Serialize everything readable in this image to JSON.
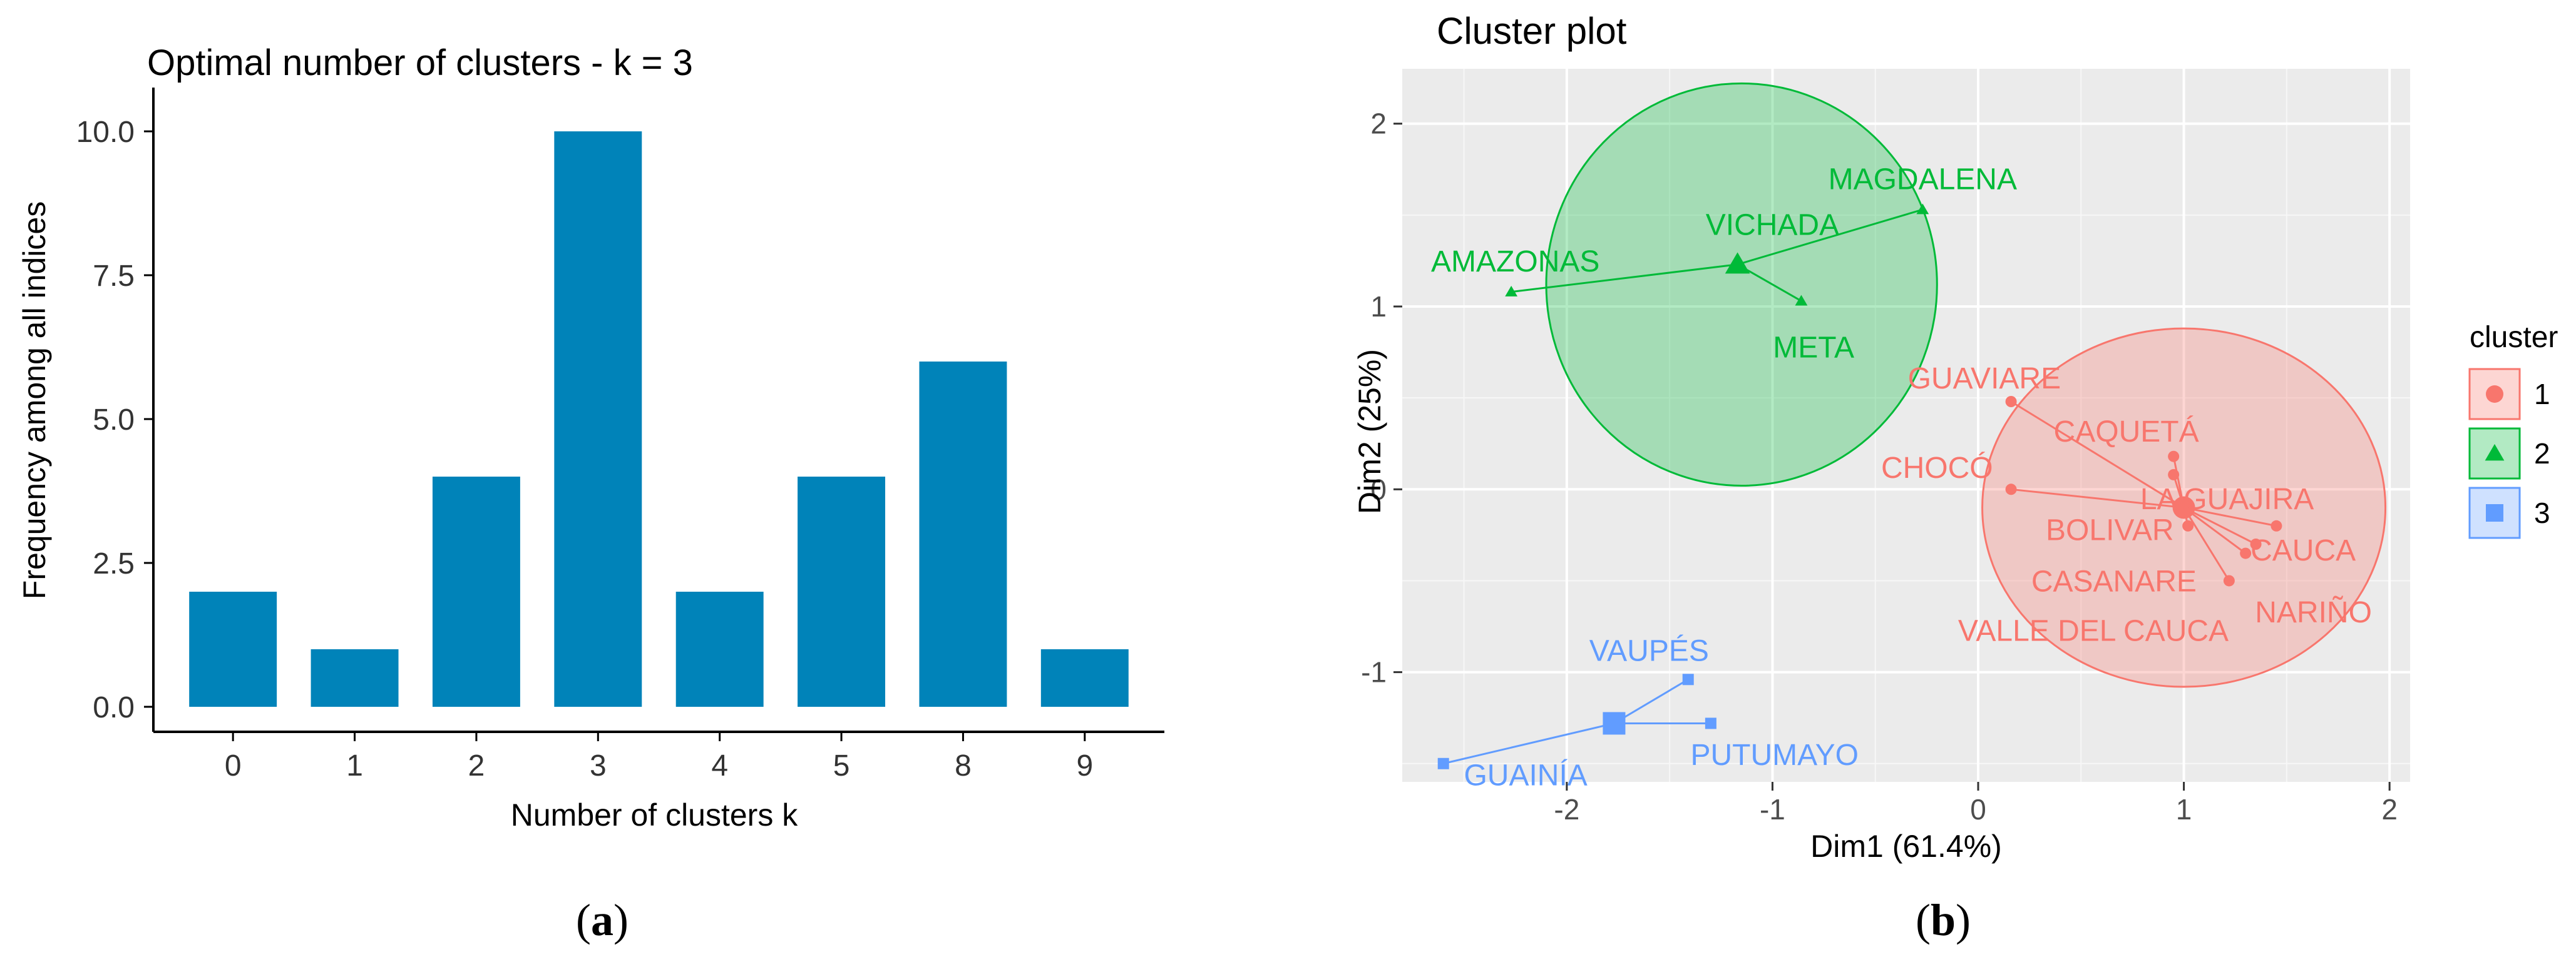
{
  "captions": {
    "a_open": "(",
    "a_letter": "a",
    "a_close": ")",
    "b_open": "(",
    "b_letter": "b",
    "b_close": ")"
  },
  "chart_data": [
    {
      "type": "bar",
      "title": "Optimal number of clusters - k = 3",
      "xlabel": "Number of clusters k",
      "ylabel": "Frequency among all indices",
      "categories": [
        "0",
        "1",
        "2",
        "3",
        "4",
        "5",
        "8",
        "9"
      ],
      "values": [
        2,
        1,
        4,
        10,
        2,
        4,
        6,
        1
      ],
      "ylim": [
        0,
        10
      ],
      "yticks": [
        "0.0",
        "2.5",
        "5.0",
        "7.5",
        "10.0"
      ],
      "ytick_values": [
        0,
        2.5,
        5,
        7.5,
        10
      ],
      "bar_color": "#0083B9",
      "grid": false
    },
    {
      "type": "scatter",
      "title": "Cluster plot",
      "xlabel": "Dim1 (61.4%)",
      "ylabel": "Dim2 (25%)",
      "xlim": [
        -2.8,
        2.1
      ],
      "ylim": [
        -1.6,
        2.3
      ],
      "xticks": [
        -2,
        -1,
        0,
        1,
        2
      ],
      "yticks": [
        -1,
        0,
        1,
        2
      ],
      "grid": true,
      "legend": {
        "title": "cluster",
        "position": "right",
        "entries": [
          "1",
          "2",
          "3"
        ]
      },
      "clusters": [
        {
          "name": "1",
          "color": "#F8766D",
          "fill": "#F8766D",
          "shape": "circle",
          "center": [
            1.0,
            -0.1
          ],
          "ellipse": {
            "cx": 1.0,
            "cy": -0.1,
            "rx": 0.98,
            "ry": 0.98
          },
          "points": [
            {
              "label": "GUAVIARE",
              "x": 0.16,
              "y": 0.48,
              "lx": 0.03,
              "ly": 0.61
            },
            {
              "label": "CAQUETÁ",
              "x": 0.95,
              "y": 0.18,
              "lx": 0.72,
              "ly": 0.32
            },
            {
              "label": "CHOCÓ",
              "x": 0.16,
              "y": 0.0,
              "lx": -0.2,
              "ly": 0.12
            },
            {
              "label": "LA GUAJIRA",
              "x": 0.95,
              "y": 0.08,
              "lx": 1.21,
              "ly": -0.05
            },
            {
              "label": "BOLIVAR",
              "x": 1.02,
              "y": -0.2,
              "lx": 0.64,
              "ly": -0.22
            },
            {
              "label": "CAUCA",
              "x": 1.45,
              "y": -0.2,
              "lx": 1.58,
              "ly": -0.33
            },
            {
              "label": "CASANARE",
              "x": 1.22,
              "y": -0.5,
              "lx": 0.66,
              "ly": -0.5
            },
            {
              "label": "NARIÑO",
              "x": 1.35,
              "y": -0.3,
              "lx": 1.63,
              "ly": -0.67
            },
            {
              "label": "VALLE DEL CAUCA",
              "x": 1.3,
              "y": -0.35,
              "lx": 0.56,
              "ly": -0.77
            }
          ]
        },
        {
          "name": "2",
          "color": "#00BA38",
          "fill": "#00BA38",
          "shape": "triangle",
          "center": [
            -1.17,
            1.23
          ],
          "ellipse": {
            "cx": -1.15,
            "cy": 1.12,
            "rx": 0.95,
            "ry": 1.1
          },
          "points": [
            {
              "label": "MAGDALENA",
              "x": -0.27,
              "y": 1.53,
              "lx": -0.27,
              "ly": 1.7
            },
            {
              "label": "VICHADA",
              "x": -1.17,
              "y": 1.23,
              "lx": -1.0,
              "ly": 1.45
            },
            {
              "label": "AMAZONAS",
              "x": -2.27,
              "y": 1.08,
              "lx": -2.25,
              "ly": 1.25
            },
            {
              "label": "META",
              "x": -0.86,
              "y": 1.03,
              "lx": -0.8,
              "ly": 0.78
            }
          ]
        },
        {
          "name": "3",
          "color": "#619CFF",
          "fill": "#619CFF",
          "shape": "square",
          "center": [
            -1.77,
            -1.28
          ],
          "ellipse": null,
          "points": [
            {
              "label": "VAUPÉS",
              "x": -1.41,
              "y": -1.04,
              "lx": -1.6,
              "ly": -0.88
            },
            {
              "label": "GUAINÍA",
              "x": -2.6,
              "y": -1.5,
              "lx": -2.2,
              "ly": -1.56
            },
            {
              "label": "PUTUMAYO",
              "x": -1.3,
              "y": -1.28,
              "lx": -0.99,
              "ly": -1.45
            }
          ]
        }
      ]
    }
  ]
}
